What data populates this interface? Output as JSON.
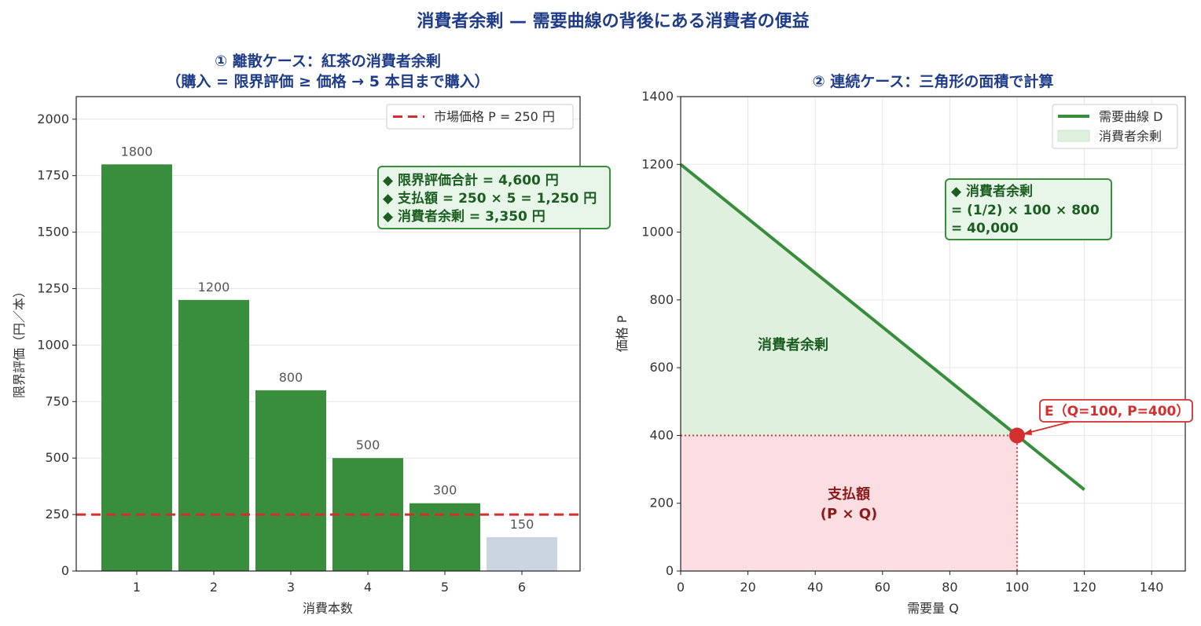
{
  "title": "消費者余剰 — 需要曲線の背後にある消費者の便益",
  "colors": {
    "title": "#1f3c88",
    "bar_green": "#388e3c",
    "bar_gray": "#cbd5e1",
    "price_line": "#d32f2f",
    "cs_fill": "#dff0df",
    "pay_fill": "#fcdde1",
    "box_fill": "#e8f5e9",
    "box_edge": "#388e3c",
    "dark_green": "#1b5e20",
    "dark_red": "#8b1a1a"
  },
  "chart_data": [
    {
      "type": "bar",
      "title_line1": "① 離散ケース：紅茶の消費者余剰",
      "title_line2": "（購入 = 限界評価 ≥ 価格 → 5 本目まで購入）",
      "xlabel": "消費本数",
      "ylabel": "限界評価（円／本）",
      "categories": [
        "1",
        "2",
        "3",
        "4",
        "5",
        "6"
      ],
      "values": [
        1800,
        1200,
        800,
        500,
        300,
        150
      ],
      "value_labels": [
        "1800",
        "1200",
        "800",
        "500",
        "300",
        "150"
      ],
      "purchased": [
        true,
        true,
        true,
        true,
        true,
        false
      ],
      "ylim": [
        0,
        2100
      ],
      "yticks": [
        0,
        250,
        500,
        750,
        1000,
        1250,
        1500,
        1750,
        2000
      ],
      "ytick_labels": [
        "0",
        "250",
        "500",
        "750",
        "1000",
        "1250",
        "1500",
        "1750",
        "2000"
      ],
      "price": 250,
      "legend": [
        "市場価格 P = 250 円"
      ],
      "legend_position": "top-right",
      "grid": true,
      "annotation": [
        "◆ 限界評価合計 = 4,600 円",
        "◆ 支払額 = 250 × 5 = 1,250 円",
        "◆ 消費者余剰 = 3,350 円"
      ]
    },
    {
      "type": "line",
      "title": "② 連続ケース：三角形の面積で計算",
      "xlabel": "需要量 Q",
      "ylabel": "価格 P",
      "series": [
        {
          "name": "需要曲線 D",
          "x": [
            0,
            120
          ],
          "y": [
            1200,
            240
          ]
        }
      ],
      "xlim": [
        0,
        150
      ],
      "ylim": [
        0,
        1400
      ],
      "xticks": [
        0,
        20,
        40,
        60,
        80,
        100,
        120,
        140
      ],
      "xtick_labels": [
        "0",
        "20",
        "40",
        "60",
        "80",
        "100",
        "120",
        "140"
      ],
      "yticks": [
        0,
        200,
        400,
        600,
        800,
        1000,
        1200,
        1400
      ],
      "ytick_labels": [
        "0",
        "200",
        "400",
        "600",
        "800",
        "1000",
        "1200",
        "1400"
      ],
      "equilibrium": {
        "q": 100,
        "p": 400,
        "label": "E（Q=100, P=400）"
      },
      "legend": [
        "需要曲線 D",
        "消費者余剰"
      ],
      "legend_position": "top-right",
      "grid": true,
      "cs_area_label": "消費者余剰",
      "payment_area_label_line1": "支払額",
      "payment_area_label_line2": "(P × Q)",
      "annotation": [
        "◆ 消費者余剰",
        "= (1/2) × 100 × 800",
        "= 40,000"
      ]
    }
  ]
}
